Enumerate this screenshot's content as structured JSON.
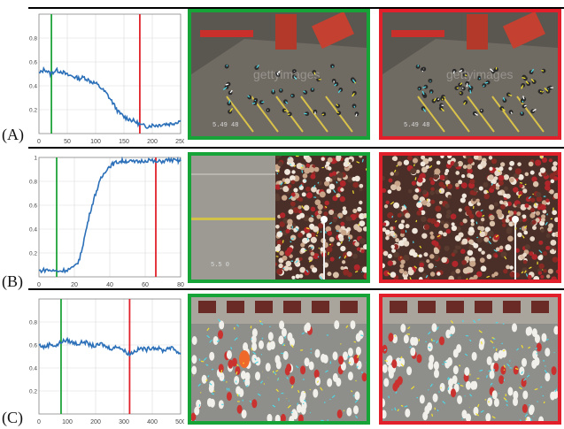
{
  "colors": {
    "curve": "#2a6fb8",
    "green_marker": "#1fa33a",
    "red_marker": "#e0212b",
    "green_frame": "#16a337",
    "red_frame": "#e2202c",
    "separator": "#000000",
    "cyan_track": "#4fd7e6",
    "yellow_track": "#f3e231",
    "white_track": "#ffffff"
  },
  "rows": [
    {
      "label": "(A)",
      "watermark": "gettyimages",
      "stamp": "5.49 48",
      "chart_data": {
        "type": "line",
        "xlim": [
          0,
          250
        ],
        "ylim": [
          0,
          1
        ],
        "xticks": [
          "0",
          "50",
          "100",
          "150",
          "200",
          "250"
        ],
        "yticks": [
          "0.8",
          "0.6",
          "0.4",
          "0.2"
        ],
        "green_x": 22,
        "red_x": 178,
        "x": [
          0,
          10,
          20,
          30,
          40,
          50,
          60,
          70,
          80,
          90,
          100,
          110,
          120,
          130,
          140,
          150,
          160,
          170,
          180,
          190,
          200,
          210,
          220,
          230,
          240,
          250
        ],
        "y": [
          0.5,
          0.54,
          0.5,
          0.53,
          0.52,
          0.49,
          0.48,
          0.46,
          0.47,
          0.44,
          0.42,
          0.38,
          0.33,
          0.26,
          0.18,
          0.14,
          0.12,
          0.1,
          0.07,
          0.06,
          0.07,
          0.07,
          0.08,
          0.08,
          0.09,
          0.11
        ]
      }
    },
    {
      "label": "(B)",
      "watermark": "",
      "stamp": "5.5 0",
      "chart_data": {
        "type": "line",
        "xlim": [
          0,
          80
        ],
        "ylim": [
          0,
          1
        ],
        "xticks": [
          "0",
          "20",
          "40",
          "60",
          "80"
        ],
        "yticks": [
          "1",
          "0.8",
          "0.6",
          "0.4",
          "0.2"
        ],
        "green_x": 10,
        "red_x": 66,
        "x": [
          0,
          4,
          8,
          12,
          16,
          20,
          23,
          26,
          29,
          32,
          35,
          38,
          41,
          44,
          47,
          50,
          54,
          58,
          62,
          66,
          70,
          74,
          78,
          80
        ],
        "y": [
          0.05,
          0.06,
          0.05,
          0.05,
          0.06,
          0.08,
          0.15,
          0.35,
          0.55,
          0.7,
          0.82,
          0.9,
          0.94,
          0.96,
          0.97,
          0.97,
          0.96,
          0.97,
          0.98,
          0.96,
          0.97,
          0.98,
          0.97,
          0.97
        ]
      }
    },
    {
      "label": "(C)",
      "watermark": "",
      "stamp": "",
      "chart_data": {
        "type": "line",
        "xlim": [
          0,
          500
        ],
        "ylim": [
          0,
          1
        ],
        "xticks": [
          "0",
          "100",
          "200",
          "300",
          "400",
          "500"
        ],
        "yticks": [
          "0.8",
          "0.6",
          "0.4",
          "0.2"
        ],
        "green_x": 78,
        "red_x": 320,
        "x": [
          0,
          20,
          40,
          60,
          80,
          100,
          120,
          140,
          160,
          180,
          200,
          220,
          240,
          260,
          280,
          300,
          320,
          340,
          360,
          380,
          400,
          420,
          440,
          460,
          480,
          500
        ],
        "y": [
          0.6,
          0.58,
          0.61,
          0.59,
          0.63,
          0.64,
          0.62,
          0.61,
          0.63,
          0.6,
          0.59,
          0.61,
          0.58,
          0.57,
          0.59,
          0.55,
          0.52,
          0.55,
          0.57,
          0.56,
          0.58,
          0.57,
          0.55,
          0.58,
          0.56,
          0.52
        ]
      }
    }
  ]
}
